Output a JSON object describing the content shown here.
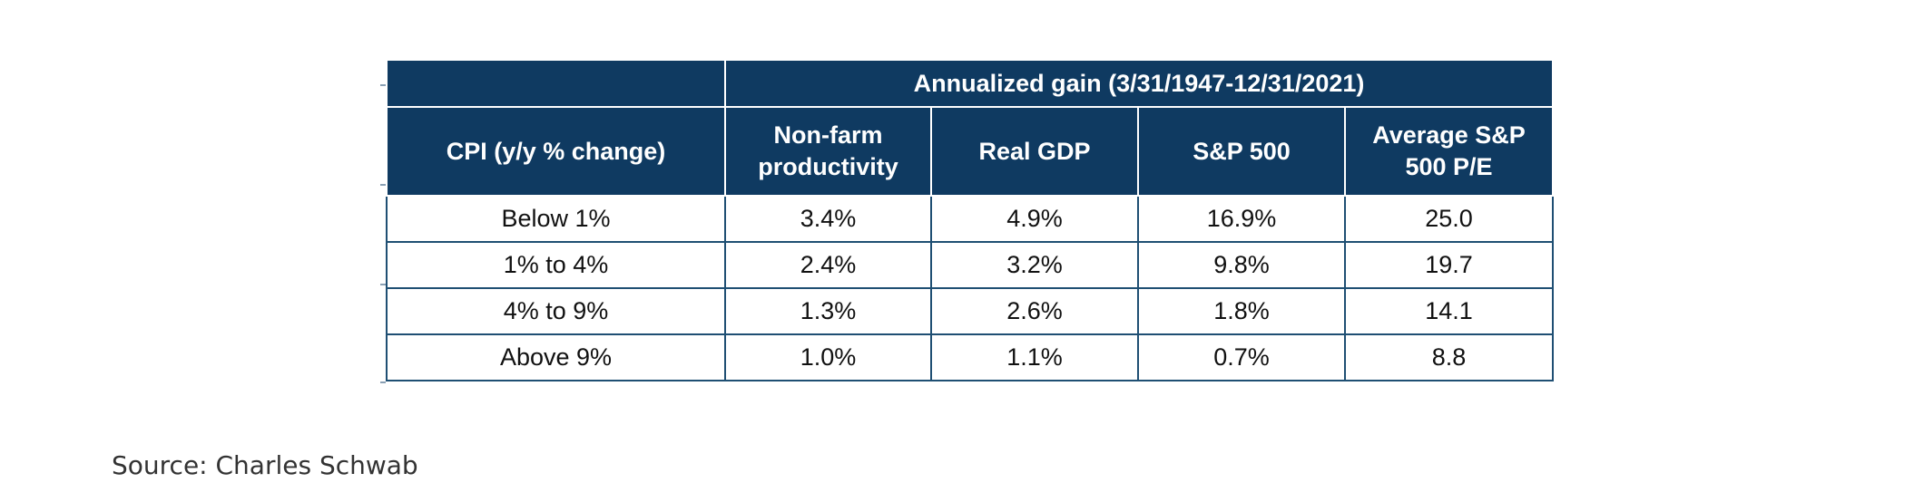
{
  "chart_data": {
    "type": "table",
    "group_header": "Annualized gain (3/31/1947-12/31/2021)",
    "columns": [
      "CPI (y/y % change)",
      "Non-farm productivity",
      "Real GDP",
      "S&P 500",
      "Average S&P 500 P/E"
    ],
    "header_lines": [
      [
        "CPI (y/y % change)"
      ],
      [
        "Non-farm",
        "productivity"
      ],
      [
        "Real GDP"
      ],
      [
        "S&P 500"
      ],
      [
        "Average S&P",
        "500 P/E"
      ]
    ],
    "rows": [
      [
        "Below 1%",
        "3.4%",
        "4.9%",
        "16.9%",
        "25.0"
      ],
      [
        "1% to 4%",
        "2.4%",
        "3.2%",
        "9.8%",
        "19.7"
      ],
      [
        "4% to 9%",
        "1.3%",
        "2.6%",
        "1.8%",
        "14.1"
      ],
      [
        "Above 9%",
        "1.0%",
        "1.1%",
        "0.7%",
        "8.8"
      ]
    ]
  },
  "source": "Source: Charles Schwab",
  "colors": {
    "header_bg": "#0f3a61",
    "header_text": "#ffffff",
    "grid_line": "#1f4f73"
  }
}
